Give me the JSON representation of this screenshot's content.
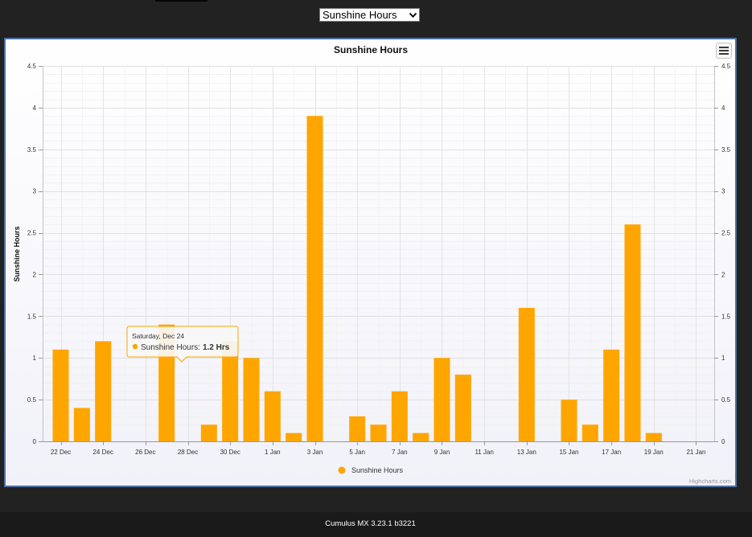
{
  "header": {
    "selector": {
      "value": "Sunshine Hours",
      "icon": "chevron-down-icon"
    }
  },
  "chart_menu": {
    "icon": "menu-icon"
  },
  "chart_data": {
    "type": "bar",
    "title": "Sunshine Hours",
    "ylabel": "Sunshine Hours",
    "x": [
      "22 Dec",
      "23 Dec",
      "24 Dec",
      "25 Dec",
      "26 Dec",
      "27 Dec",
      "28 Dec",
      "29 Dec",
      "30 Dec",
      "31 Dec",
      "1 Jan",
      "2 Jan",
      "3 Jan",
      "4 Jan",
      "5 Jan",
      "6 Jan",
      "7 Jan",
      "8 Jan",
      "9 Jan",
      "10 Jan",
      "11 Jan",
      "12 Jan",
      "13 Jan",
      "14 Jan",
      "15 Jan",
      "16 Jan",
      "17 Jan",
      "18 Jan",
      "19 Jan",
      "20 Jan",
      "21 Jan"
    ],
    "series": [
      {
        "name": "Sunshine Hours",
        "color": "#FFA500",
        "values": [
          1.1,
          0.4,
          1.2,
          0,
          0,
          1.4,
          0,
          0.2,
          1.2,
          1.0,
          0.6,
          0.1,
          3.9,
          0,
          0.3,
          0.2,
          0.6,
          0.1,
          1.0,
          0.8,
          0,
          0,
          1.6,
          0,
          0.5,
          0.2,
          1.1,
          2.6,
          0.1,
          0,
          0
        ]
      }
    ],
    "xticks": [
      "22 Dec",
      "24 Dec",
      "26 Dec",
      "28 Dec",
      "30 Dec",
      "1 Jan",
      "3 Jan",
      "5 Jan",
      "7 Jan",
      "9 Jan",
      "11 Jan",
      "13 Jan",
      "15 Jan",
      "17 Jan",
      "19 Jan",
      "21 Jan"
    ],
    "yticks": [
      0,
      0.5,
      1,
      1.5,
      2,
      2.5,
      3,
      3.5,
      4,
      4.5
    ],
    "ylim": [
      0,
      4.5
    ],
    "secondary_y_axis": true,
    "grid": true,
    "legend": "bottom-center",
    "tooltip": {
      "date": "Saturday, Dec 24",
      "label": "Sunshine Hours:",
      "value": "1.2 Hrs"
    },
    "credits": "Highcharts.com"
  },
  "footer": {
    "text": "Cumulus MX 3.23.1 b3221"
  }
}
